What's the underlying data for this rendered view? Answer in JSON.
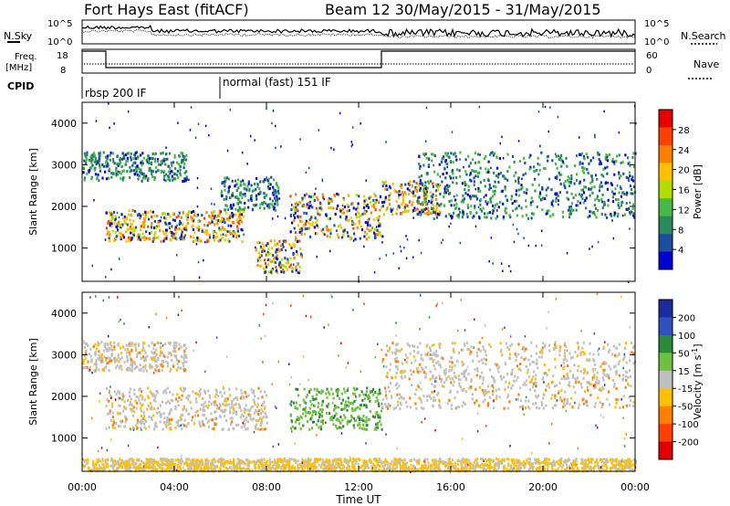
{
  "header": {
    "station": "Fort Hays East (fitACF)",
    "beam_date": "Beam 12 30/May/2015 - 31/May/2015"
  },
  "status_panels": {
    "nsky_label": "N.Sky",
    "nsearch_label": "N.Search",
    "noise_ticks": [
      "10^5",
      "10^0"
    ],
    "freq_label_line1": "Freq.",
    "freq_label_line2": "[MHz]",
    "freq_ticks": [
      "18",
      "8"
    ],
    "nave_label": "Nave",
    "nave_ticks": [
      "60",
      "0"
    ],
    "cpid_label": "CPID",
    "cpid_modes": [
      {
        "label": "rbsp 200 IF",
        "start_hour": 0
      },
      {
        "label": "normal (fast) 151 IF",
        "start_hour": 6
      }
    ]
  },
  "chart_data": [
    {
      "type": "heatmap",
      "panel": "power",
      "xlabel": "",
      "ylabel": "Slant Range [km]",
      "xlim": [
        0,
        24
      ],
      "ylim": [
        200,
        4500
      ],
      "yticks": [
        "1000",
        "2000",
        "3000",
        "4000"
      ],
      "colorbar": {
        "label": "Power [dB]",
        "ticks": [
          "28",
          "24",
          "20",
          "16",
          "12",
          "8",
          "4"
        ],
        "colors": [
          "#e60000",
          "#ff4000",
          "#ff8000",
          "#ffc000",
          "#b4dc00",
          "#48b848",
          "#2a8a5a",
          "#1a4fa0",
          "#0000d0"
        ]
      },
      "features": [
        {
          "from_hour": 1.0,
          "to_hour": 7.0,
          "range_km": [
            1150,
            1900
          ],
          "peak_db": 24
        },
        {
          "from_hour": 0.0,
          "to_hour": 4.5,
          "range_km": [
            2600,
            3300
          ],
          "peak_db": 14
        },
        {
          "from_hour": 6.0,
          "to_hour": 8.5,
          "range_km": [
            1900,
            2700
          ],
          "peak_db": 16
        },
        {
          "from_hour": 9.0,
          "to_hour": 13.0,
          "range_km": [
            1200,
            2300
          ],
          "peak_db": 26
        },
        {
          "from_hour": 7.5,
          "to_hour": 9.5,
          "range_km": [
            400,
            1200
          ],
          "peak_db": 22
        },
        {
          "from_hour": 13.0,
          "to_hour": 15.5,
          "range_km": [
            1800,
            2600
          ],
          "peak_db": 24
        },
        {
          "from_hour": 14.5,
          "to_hour": 24.0,
          "range_km": [
            1700,
            3300
          ],
          "peak_db": 14
        }
      ]
    },
    {
      "type": "heatmap",
      "panel": "velocity",
      "xlabel": "Time UT",
      "ylabel": "Slant Range [km]",
      "xlim": [
        0,
        24
      ],
      "ylim": [
        200,
        4500
      ],
      "xticks": [
        "00:00",
        "04:00",
        "08:00",
        "12:00",
        "16:00",
        "20:00",
        "00:00"
      ],
      "yticks": [
        "1000",
        "2000",
        "3000",
        "4000"
      ],
      "colorbar": {
        "label": "Velocity [m s^-1]",
        "ticks": [
          "200",
          "100",
          "50",
          "15",
          "-15",
          "-50",
          "-100",
          "-200"
        ],
        "colors": [
          "#1a2aa0",
          "#3050c0",
          "#2a8a3a",
          "#70c040",
          "#c0c0c0",
          "#ffc000",
          "#ff8000",
          "#ff4000",
          "#e00000"
        ]
      },
      "features": [
        {
          "from_hour": 0.0,
          "to_hour": 4.5,
          "range_km": [
            2600,
            3300
          ],
          "dominant": "-15 to 15 with -50"
        },
        {
          "from_hour": 1.0,
          "to_hour": 8.0,
          "range_km": [
            1200,
            2200
          ],
          "dominant": "-15 to 15"
        },
        {
          "from_hour": 9.0,
          "to_hour": 13.0,
          "range_km": [
            1200,
            2200
          ],
          "dominant": "15 to 50"
        },
        {
          "from_hour": 13.0,
          "to_hour": 24.0,
          "range_km": [
            1700,
            3300
          ],
          "dominant": "-15 to 15"
        },
        {
          "from_hour": 0.0,
          "to_hour": 24.0,
          "range_km": [
            200,
            500
          ],
          "dominant": "-50"
        }
      ]
    }
  ]
}
